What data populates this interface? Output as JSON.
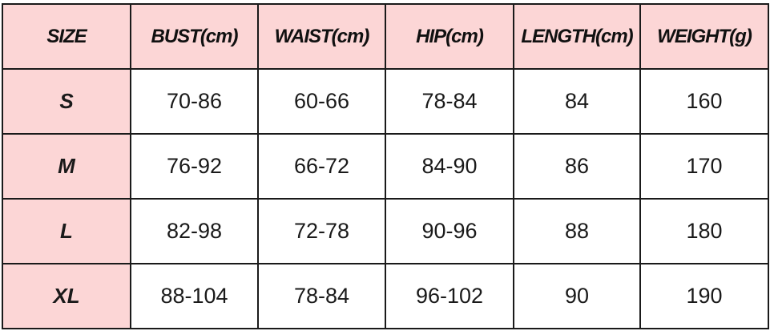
{
  "table": {
    "headers": [
      "SIZE",
      "BUST(cm)",
      "WAIST(cm)",
      "HIP(cm)",
      "LENGTH(cm)",
      "WEIGHT(g)"
    ],
    "rows": [
      [
        "S",
        "70-86",
        "60-66",
        "78-84",
        "84",
        "160"
      ],
      [
        "M",
        "76-92",
        "66-72",
        "84-90",
        "86",
        "170"
      ],
      [
        "L",
        "82-98",
        "72-78",
        "90-96",
        "88",
        "180"
      ],
      [
        "XL",
        "88-104",
        "78-84",
        "96-102",
        "90",
        "190"
      ]
    ]
  },
  "colors": {
    "header_bg": "#fcd6d6",
    "cell_bg": "#ffffff",
    "border": "#1a1a1a"
  }
}
